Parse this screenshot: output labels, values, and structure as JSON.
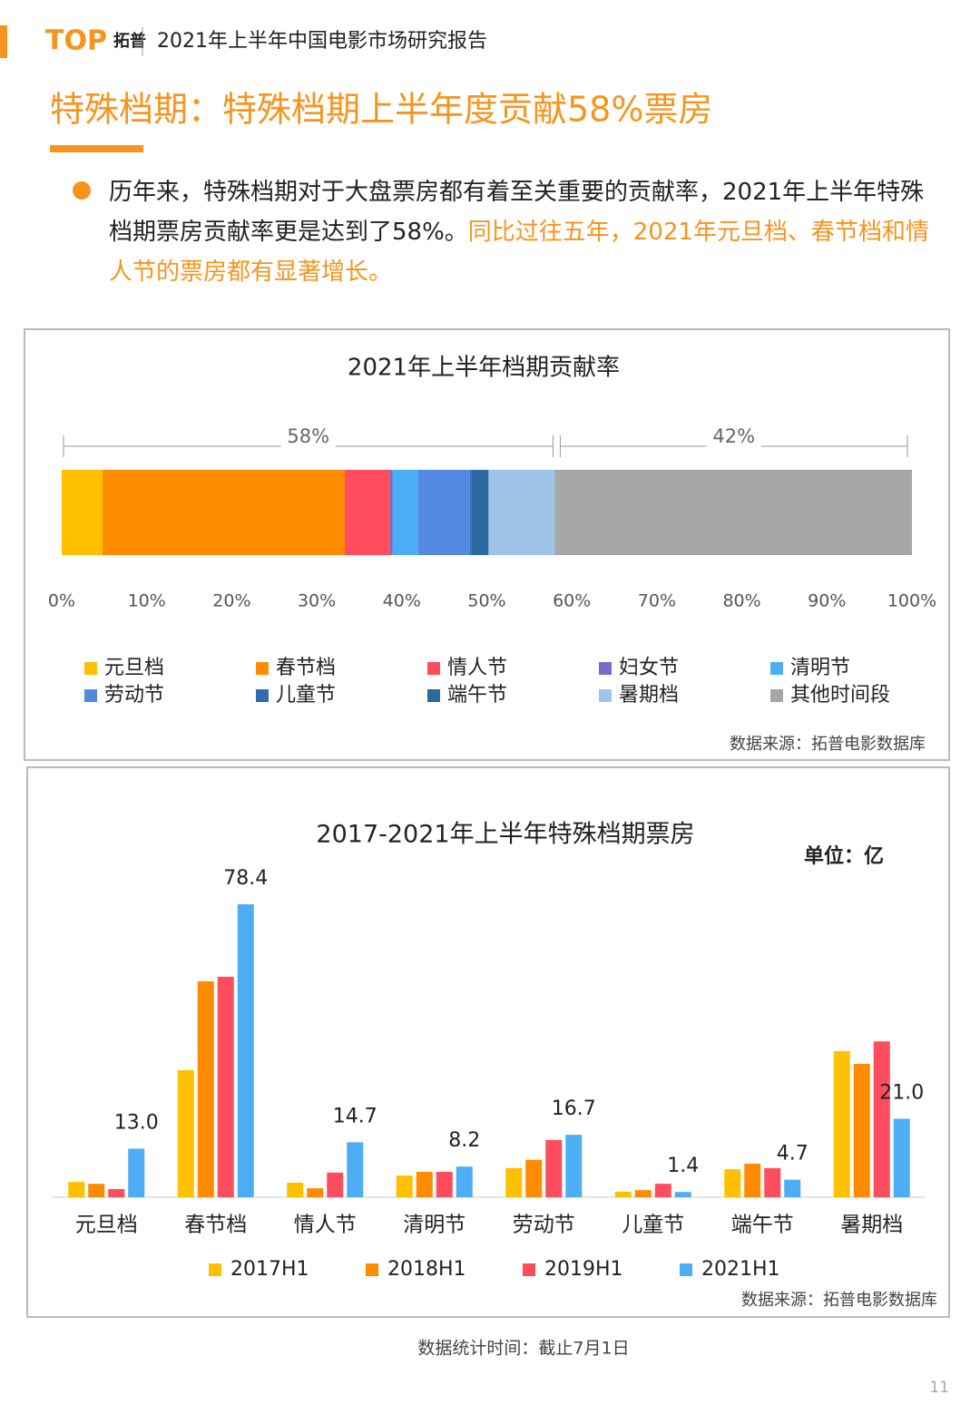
{
  "header": {
    "logo": "TOP",
    "logo_cn": "拓普",
    "title": "2021年上半年中国电影市场研究报告"
  },
  "heading": "特殊档期：特殊档期上半年度贡献58%票房",
  "paragraph": {
    "text": "历年来，特殊档期对于大盘票房都有着至关重要的贡献率，2021年上半年特殊档期票房贡献率更是达到了58%。",
    "highlight": "同比过往五年，2021年元旦档、春节档和情人节的票房都有显著增长。"
  },
  "chart_data": [
    {
      "type": "stacked-bar-horizontal",
      "title": "2021年上半年档期贡献率",
      "series": [
        {
          "name": "元旦档",
          "color": "#ffc000",
          "values": [
            4.8
          ]
        },
        {
          "name": "春节档",
          "color": "#ff8c00",
          "values": [
            28.5
          ]
        },
        {
          "name": "情人节",
          "color": "#ff4d5e",
          "values": [
            5.3
          ]
        },
        {
          "name": "妇女节",
          "color": "#7b68c8",
          "values": [
            0.3
          ]
        },
        {
          "name": "清明节",
          "color": "#4daef5",
          "values": [
            3.0
          ]
        },
        {
          "name": "劳动节",
          "color": "#5588e0",
          "values": [
            6.1
          ]
        },
        {
          "name": "儿童节",
          "color": "#2e6db4",
          "values": [
            0.2
          ]
        },
        {
          "name": "端午节",
          "color": "#2a6aa0",
          "values": [
            2.0
          ]
        },
        {
          "name": "暑期档",
          "color": "#a0c4e8",
          "values": [
            7.8
          ]
        },
        {
          "name": "其他时间段",
          "color": "#a6a6a6",
          "values": [
            42
          ]
        }
      ],
      "bracket_labels": [
        "58%",
        "42%"
      ],
      "xlim": [
        0,
        100
      ],
      "xticks": [
        {
          "value": 0,
          "label": "0%"
        },
        {
          "value": 10,
          "label": "10%"
        },
        {
          "value": 20,
          "label": "20%"
        },
        {
          "value": 30,
          "label": "30%"
        },
        {
          "value": 40,
          "label": "40%"
        },
        {
          "value": 50,
          "label": "50%"
        },
        {
          "value": 60,
          "label": "60%"
        },
        {
          "value": 70,
          "label": "70%"
        },
        {
          "value": 80,
          "label": "80%"
        },
        {
          "value": 90,
          "label": "90%"
        },
        {
          "value": 100,
          "label": "100%"
        }
      ],
      "source": "数据来源：拓普电影数据库"
    },
    {
      "type": "bar",
      "title": "2017-2021年上半年特殊档期票房",
      "unit": "单位：亿",
      "categories": [
        "元旦档",
        "春节档",
        "情人节",
        "清明节",
        "劳动节",
        "儿童节",
        "端午节",
        "暑期档"
      ],
      "series": [
        {
          "name": "2017H1",
          "color": "#ffc000",
          "values": [
            4.1,
            34.0,
            3.9,
            5.8,
            7.8,
            1.5,
            7.5,
            39.1
          ]
        },
        {
          "name": "2018H1",
          "color": "#ff8c00",
          "values": [
            3.6,
            57.8,
            2.4,
            6.8,
            10.0,
            1.9,
            9.0,
            35.7
          ]
        },
        {
          "name": "2019H1",
          "color": "#ff4d5e",
          "values": [
            2.2,
            59.0,
            6.6,
            6.8,
            15.3,
            3.6,
            7.8,
            41.7
          ]
        },
        {
          "name": "2021H1",
          "color": "#4daef5",
          "values": [
            13.0,
            78.4,
            14.7,
            8.2,
            16.7,
            1.4,
            4.7,
            21.0
          ],
          "value_labels": [
            "13.0",
            "78.4",
            "14.7",
            "8.2",
            "16.7",
            "1.4",
            "4.7",
            "21.0"
          ]
        }
      ],
      "source": "数据来源：拓普电影数据库"
    }
  ],
  "footer": {
    "note": "数据统计时间：截止7月1日",
    "page": "11"
  }
}
